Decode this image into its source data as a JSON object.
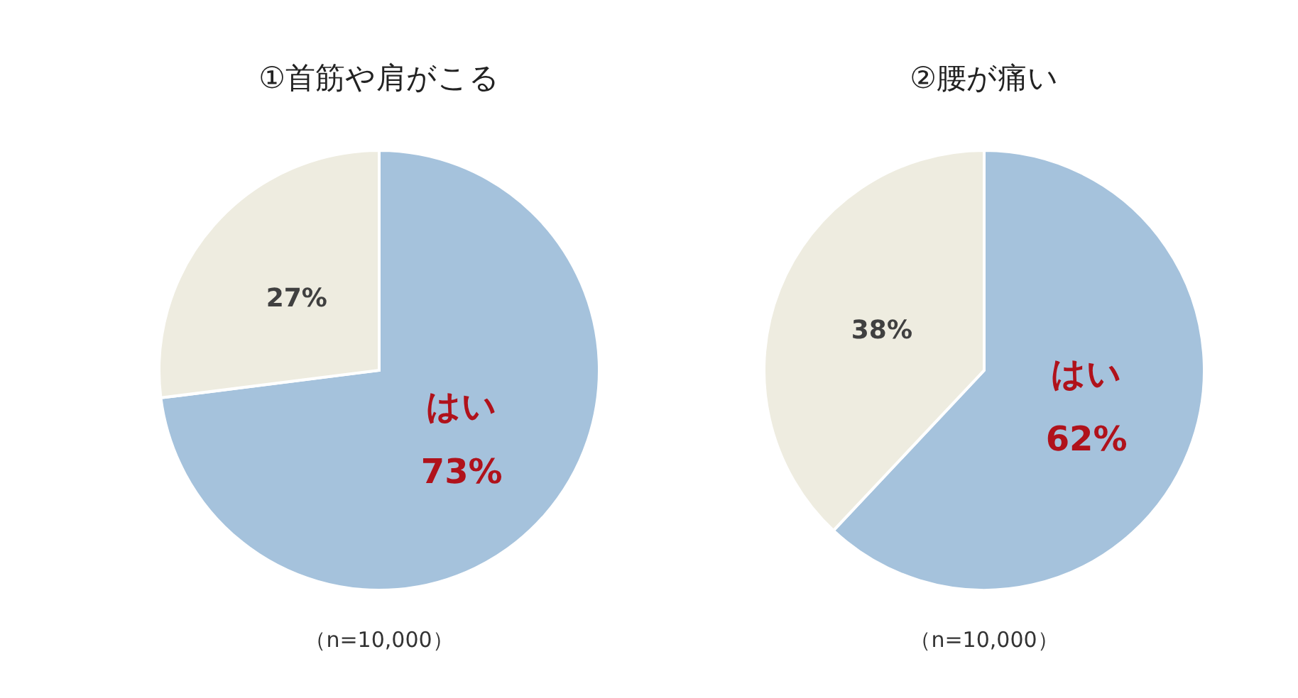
{
  "chart_data": [
    {
      "type": "pie",
      "title": "①首筋や肩がこる",
      "categories": [
        "はい",
        null
      ],
      "values": [
        73,
        27
      ],
      "colors": [
        "#a5c2dc",
        "#eeece0"
      ],
      "value_labels": [
        "73%",
        "27%"
      ],
      "annotations": [
        "（n=10,000）"
      ]
    },
    {
      "type": "pie",
      "title": "②腰が痛い",
      "categories": [
        "はい",
        null
      ],
      "values": [
        62,
        38
      ],
      "colors": [
        "#a5c2dc",
        "#eeece0"
      ],
      "value_labels": [
        "62%",
        "38%"
      ],
      "annotations": [
        "（n=10,000）"
      ]
    }
  ]
}
